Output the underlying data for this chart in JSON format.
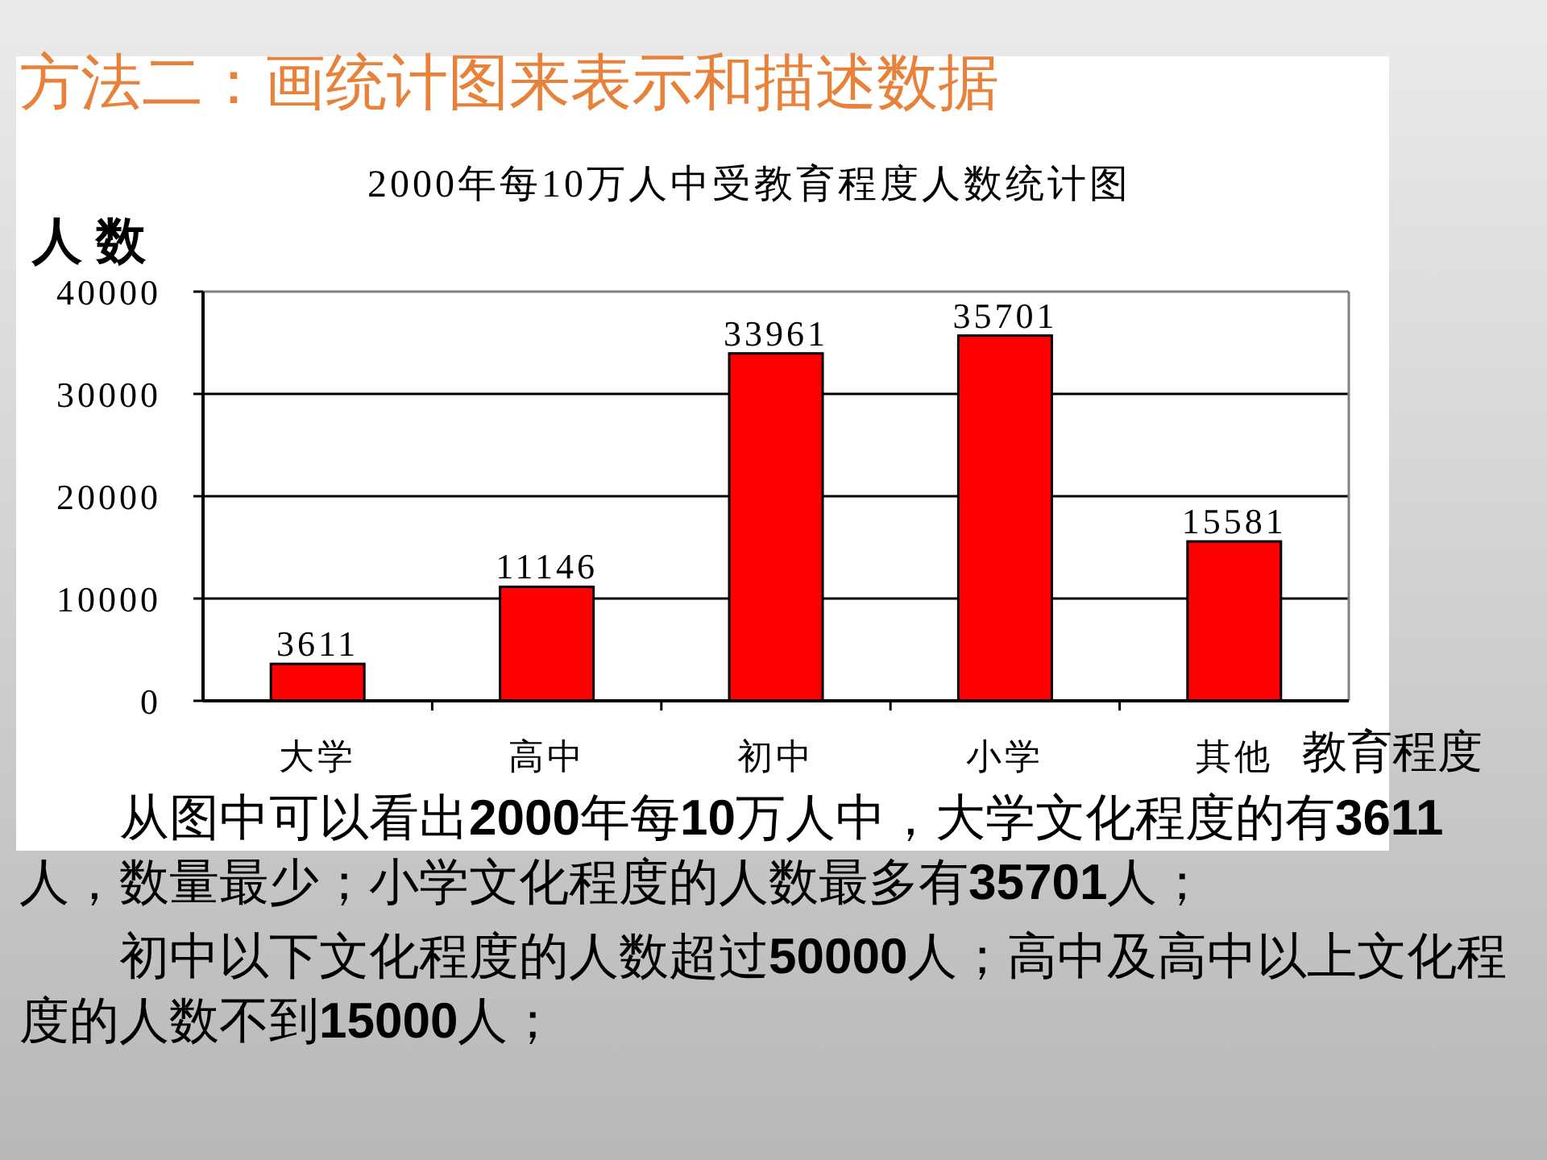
{
  "chart_data": {
    "type": "bar",
    "title": "方法二：画统计图来表示和描述数据",
    "subtitle": "2000年每10万人中受教育程度人数统计图",
    "ylabel": "人 数",
    "xlabel": "教育程度",
    "categories": [
      "大学",
      "高中",
      "初中",
      "小学",
      "其他"
    ],
    "values": [
      3611,
      11146,
      33961,
      35701,
      15581
    ],
    "color": "#ff0000",
    "ylim": [
      0,
      40000
    ],
    "yticks": [
      0,
      10000,
      20000,
      30000,
      40000
    ],
    "grid": "y",
    "data_labels": true,
    "annotations": [
      "从图中可以看出2000年每10万人中，大学文化程度的有3611人，数量最少；小学文化程度的人数最多有35701人；",
      "初中以下文化程度的人数超过50000人；高中及高中以上文化程度的人数不到15000人；"
    ]
  }
}
